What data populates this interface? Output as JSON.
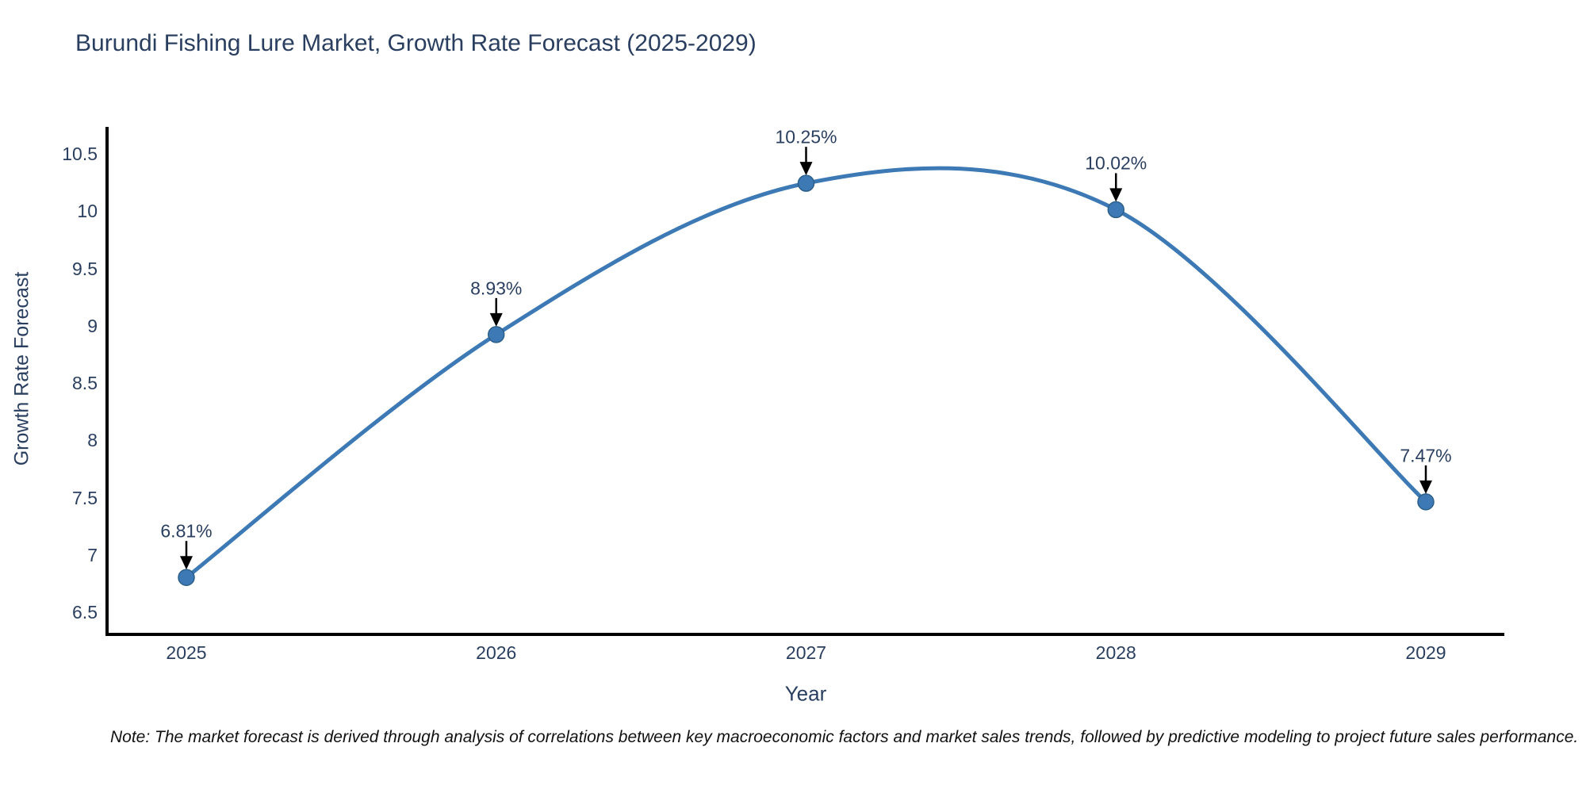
{
  "header": {
    "title": "Burundi Fishing Lure Market, Growth Rate Forecast (2025-2029)"
  },
  "footer": {
    "note": "Note: The market forecast is derived through analysis of correlations between key macroeconomic factors and market sales trends, followed by predictive modeling to project future sales performance."
  },
  "chart_data": {
    "type": "line",
    "title": "Burundi Fishing Lure Market, Growth Rate Forecast (2025-2029)",
    "xlabel": "Year",
    "ylabel": "Growth Rate Forecast",
    "categories": [
      "2025",
      "2026",
      "2027",
      "2028",
      "2029"
    ],
    "values": [
      6.81,
      8.93,
      10.25,
      10.02,
      7.47
    ],
    "point_labels": [
      "6.81%",
      "8.93%",
      "10.25%",
      "10.02%",
      "7.47%"
    ],
    "y_tick_labels": [
      "10.5",
      "10",
      "9.5",
      "9",
      "8.5",
      "8",
      "7.5",
      "7",
      "6.5"
    ],
    "y_tick_values": [
      10.5,
      10,
      9.5,
      9,
      8.5,
      8,
      7.5,
      7,
      6.5
    ],
    "ylim": [
      6.31,
      10.74
    ],
    "line_shape": "spline",
    "grid": false,
    "legend": "none",
    "colors": {
      "line": "#3d7ab5",
      "marker_fill": "#3d7ab5",
      "marker_edge": "#2c5f8a",
      "axis": "#000000",
      "tick_text": "#2a3f5f",
      "annotation_text": "#2a3f5f",
      "arrow": "#000000"
    }
  }
}
